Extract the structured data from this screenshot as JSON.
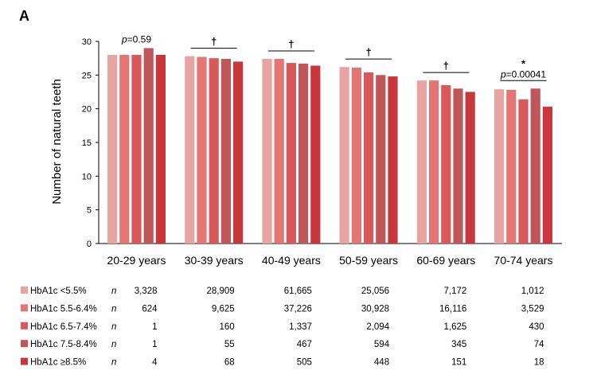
{
  "panel_label": "A",
  "chart_data": {
    "type": "bar",
    "ylabel": "Number of natural teeth",
    "ylim": [
      0,
      30
    ],
    "yticks": [
      0,
      5,
      10,
      15,
      20,
      25,
      30
    ],
    "categories": [
      "20-29 years",
      "30-39 years",
      "40-49 years",
      "50-59 years",
      "60-69 years",
      "70-74 years"
    ],
    "series": [
      {
        "name": "HbA1c <5.5%",
        "color": "#E8A4A2",
        "values": [
          28.0,
          27.8,
          27.4,
          26.2,
          24.2,
          22.9
        ],
        "n": [
          "3,328",
          "28,909",
          "61,665",
          "25,056",
          "7,172",
          "1,012"
        ]
      },
      {
        "name": "HbA1c 5.5-6.4%",
        "color": "#E37573",
        "values": [
          28.0,
          27.7,
          27.4,
          26.1,
          24.2,
          22.8
        ],
        "n": [
          "624",
          "9,625",
          "37,226",
          "30,928",
          "16,116",
          "3,529"
        ]
      },
      {
        "name": "HbA1c 6.5-7.4%",
        "color": "#D9585A",
        "values": [
          28.0,
          27.5,
          26.8,
          25.4,
          23.5,
          21.4
        ],
        "n": [
          "1",
          "160",
          "1,337",
          "2,094",
          "1,625",
          "430"
        ]
      },
      {
        "name": "HbA1c 7.5-8.4%",
        "color": "#BF575A",
        "values": [
          29.0,
          27.4,
          26.7,
          25.0,
          23.0,
          23.0
        ],
        "n": [
          "1",
          "55",
          "467",
          "594",
          "345",
          "74"
        ]
      },
      {
        "name": "HbA1c ≥8.5%",
        "color": "#C9363B",
        "values": [
          28.0,
          27.0,
          26.4,
          24.8,
          22.5,
          20.3
        ],
        "n": [
          "4",
          "68",
          "505",
          "448",
          "151",
          "18"
        ]
      }
    ],
    "annotations": [
      {
        "group": 0,
        "p_prefix": "p",
        "p_value": "=0.59",
        "symbol": "",
        "bracket": false
      },
      {
        "group": 1,
        "p_prefix": "",
        "p_value": "",
        "symbol": "†",
        "bracket": true
      },
      {
        "group": 2,
        "p_prefix": "",
        "p_value": "",
        "symbol": "†",
        "bracket": true
      },
      {
        "group": 3,
        "p_prefix": "",
        "p_value": "",
        "symbol": "†",
        "bracket": true
      },
      {
        "group": 4,
        "p_prefix": "",
        "p_value": "",
        "symbol": "†",
        "bracket": true
      },
      {
        "group": 5,
        "p_prefix": "p",
        "p_value": "=0.00041",
        "symbol": "*",
        "bracket": true
      }
    ],
    "n_label": "n",
    "grid": false,
    "legend": "table-below"
  }
}
